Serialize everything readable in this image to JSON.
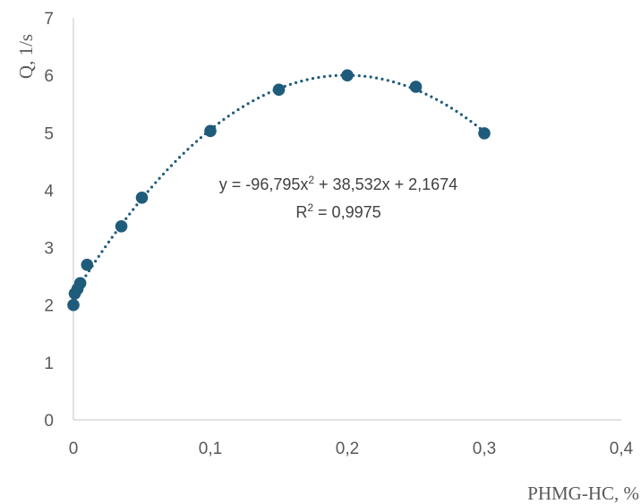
{
  "chart_data": {
    "type": "scatter",
    "xlabel": "PHMG-HC, %",
    "ylabel": "Q, 1/s",
    "xlim": [
      0,
      0.4
    ],
    "ylim": [
      0,
      7
    ],
    "x_ticks": [
      "0",
      "0,1",
      "0,2",
      "0,3",
      "0,4"
    ],
    "y_ticks": [
      "0",
      "1",
      "2",
      "3",
      "4",
      "5",
      "6",
      "7"
    ],
    "series": [
      {
        "points": [
          {
            "x": 0,
            "y": 2.0
          },
          {
            "x": 0.001,
            "y": 2.2
          },
          {
            "x": 0.003,
            "y": 2.28
          },
          {
            "x": 0.005,
            "y": 2.38
          },
          {
            "x": 0.01,
            "y": 2.7
          },
          {
            "x": 0.035,
            "y": 3.37
          },
          {
            "x": 0.05,
            "y": 3.87
          },
          {
            "x": 0.1,
            "y": 5.03
          },
          {
            "x": 0.15,
            "y": 5.75
          },
          {
            "x": 0.2,
            "y": 6.0
          },
          {
            "x": 0.25,
            "y": 5.8
          },
          {
            "x": 0.3,
            "y": 4.99
          }
        ]
      }
    ],
    "trendline": {
      "type": "polynomial",
      "order": 2,
      "coefficients": [
        -96.795,
        38.532,
        2.1674
      ],
      "x_range": [
        0,
        0.3
      ],
      "style": "dotted"
    },
    "equation": {
      "text_main": "y = -96,795x",
      "exp": "2",
      "text_rest": " + 38,532x + 2,1674",
      "r2_main": "R",
      "r2_exp": "2",
      "r2_rest": " = 0,9975"
    },
    "grid": false,
    "colors": {
      "marker": "#1f5c7c",
      "trendline": "#1f5c7c",
      "axis": "#d9d9d9",
      "text": "#595959"
    }
  }
}
